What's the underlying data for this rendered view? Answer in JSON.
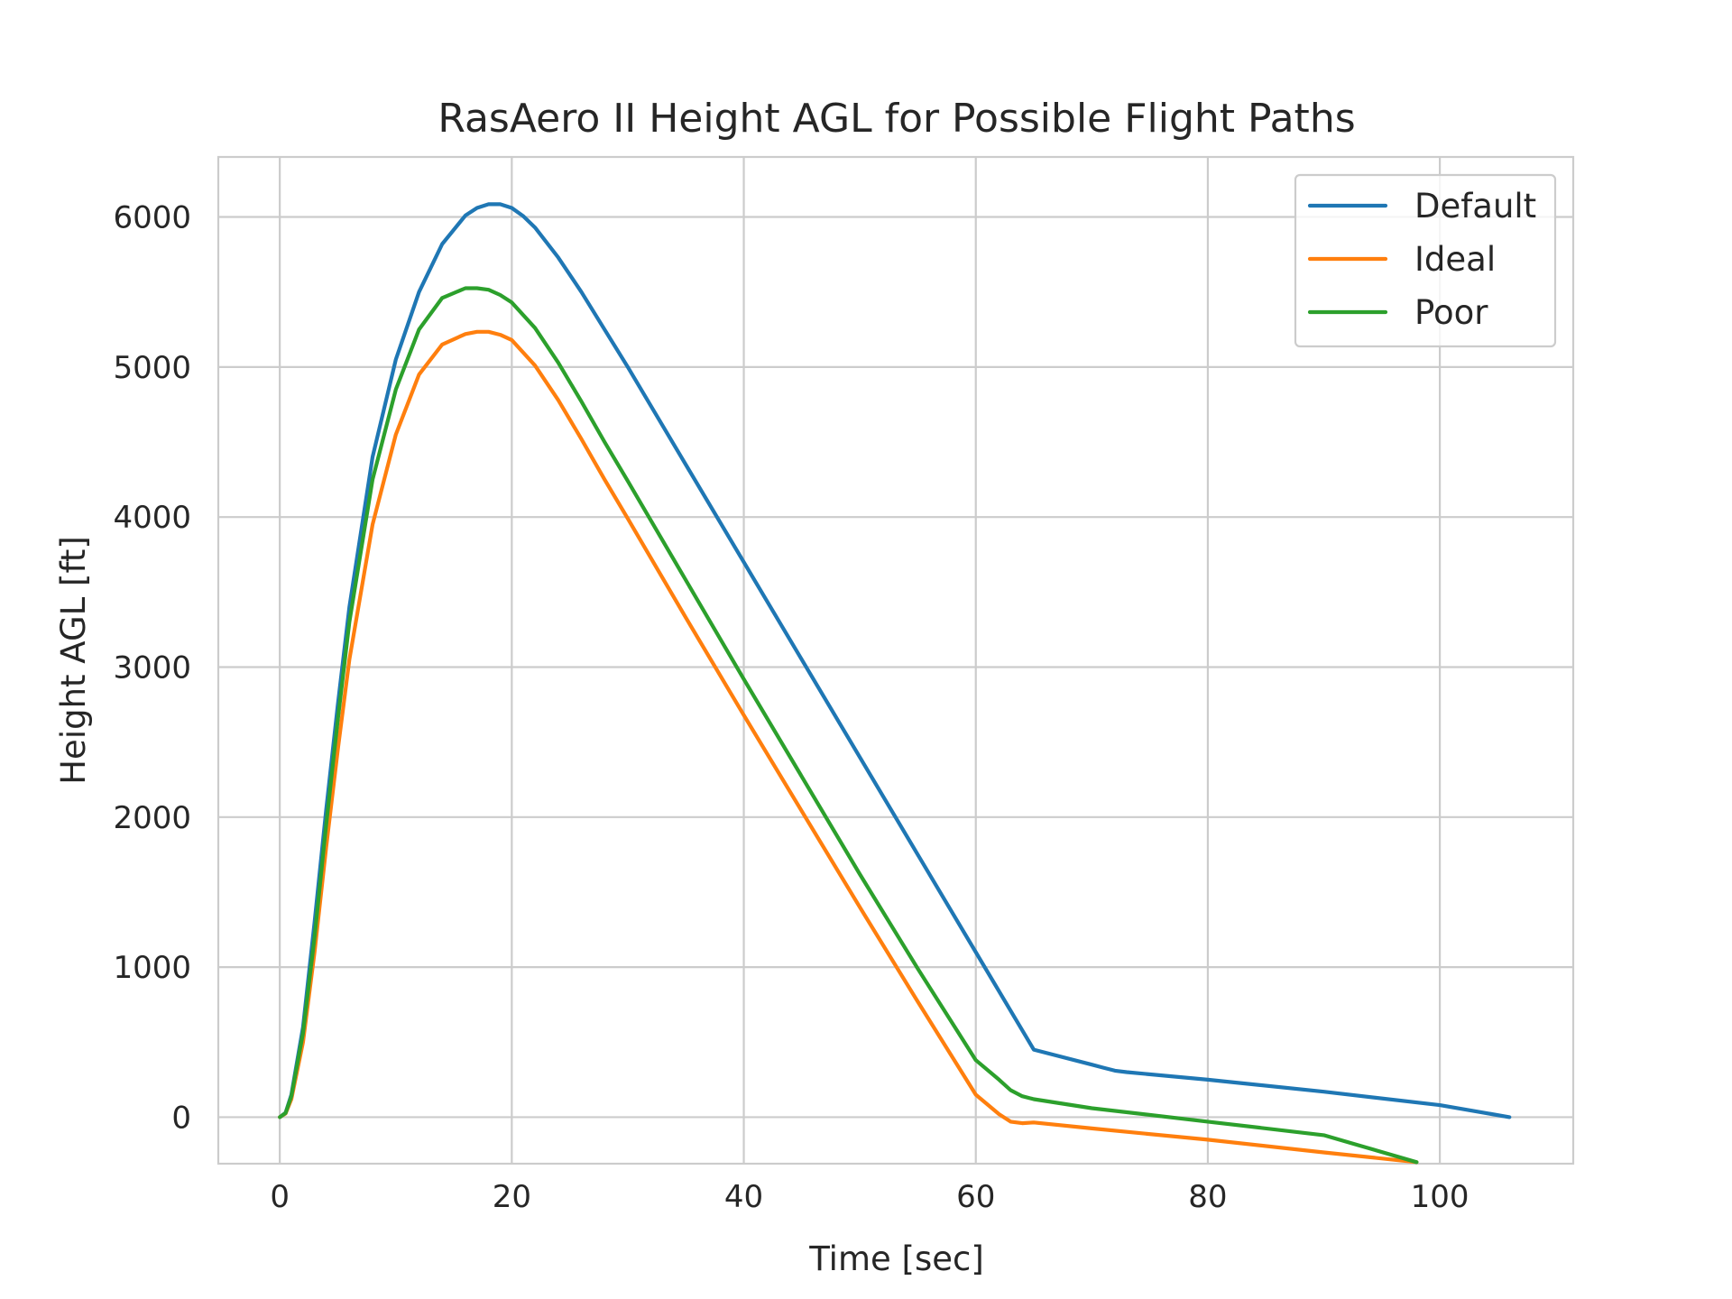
{
  "chart_data": {
    "type": "line",
    "title": "RasAero II Height AGL for Possible Flight Paths",
    "xlabel": "Time [sec]",
    "ylabel": "Height AGL [ft]",
    "xlim": [
      -5.3,
      111.5
    ],
    "ylim": [
      -310,
      6400
    ],
    "xticks": [
      0,
      20,
      40,
      60,
      80,
      100
    ],
    "yticks": [
      0,
      1000,
      2000,
      3000,
      4000,
      5000,
      6000
    ],
    "grid": true,
    "legend_position": "top-right",
    "series": [
      {
        "name": "Default",
        "color": "#1f77b4",
        "x": [
          0,
          0.5,
          1,
          2,
          3,
          4,
          5,
          6,
          8,
          10,
          12,
          14,
          16,
          17,
          18,
          19,
          20,
          21,
          22,
          24,
          26,
          28,
          30,
          35,
          40,
          45,
          50,
          55,
          60,
          65,
          70,
          71,
          72,
          73,
          80,
          90,
          100,
          106
        ],
        "y": [
          0,
          30,
          150,
          600,
          1300,
          2050,
          2750,
          3400,
          4400,
          5050,
          5500,
          5820,
          6010,
          6060,
          6085,
          6085,
          6060,
          6005,
          5930,
          5730,
          5500,
          5250,
          5000,
          4350,
          3700,
          3050,
          2400,
          1750,
          1100,
          450,
          350,
          330,
          310,
          300,
          250,
          170,
          80,
          0
        ]
      },
      {
        "name": "Ideal",
        "color": "#ff7f0e",
        "x": [
          0,
          0.5,
          1,
          2,
          3,
          4,
          5,
          6,
          8,
          10,
          12,
          14,
          16,
          17,
          18,
          19,
          20,
          22,
          24,
          26,
          28,
          30,
          35,
          40,
          45,
          50,
          55,
          60,
          62,
          63,
          64,
          65,
          70,
          80,
          90,
          98
        ],
        "y": [
          0,
          25,
          120,
          500,
          1100,
          1800,
          2450,
          3050,
          3950,
          4550,
          4950,
          5150,
          5220,
          5235,
          5235,
          5215,
          5180,
          5010,
          4780,
          4520,
          4250,
          3990,
          3330,
          2680,
          2040,
          1400,
          770,
          150,
          20,
          -30,
          -40,
          -35,
          -75,
          -150,
          -235,
          -300
        ]
      },
      {
        "name": "Poor",
        "color": "#2ca02c",
        "x": [
          0,
          0.5,
          1,
          2,
          3,
          4,
          5,
          6,
          8,
          10,
          12,
          14,
          16,
          17,
          18,
          19,
          20,
          22,
          24,
          26,
          28,
          30,
          35,
          40,
          45,
          50,
          55,
          60,
          62,
          63,
          64,
          65,
          70,
          80,
          90,
          98
        ],
        "y": [
          0,
          28,
          140,
          560,
          1200,
          1950,
          2650,
          3300,
          4250,
          4850,
          5250,
          5460,
          5525,
          5525,
          5515,
          5480,
          5430,
          5260,
          5030,
          4770,
          4500,
          4240,
          3580,
          2920,
          2270,
          1620,
          990,
          380,
          250,
          180,
          140,
          120,
          60,
          -30,
          -120,
          -300
        ]
      }
    ]
  }
}
